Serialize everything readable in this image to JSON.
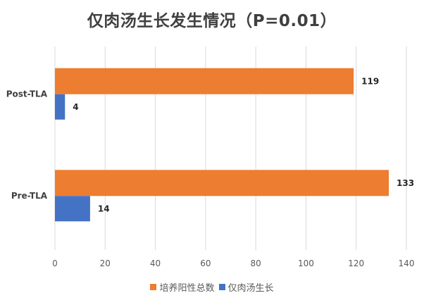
{
  "chart_data": {
    "type": "bar",
    "orientation": "horizontal",
    "title": "仅肉汤生长发生情况（P=0.01）",
    "categories": [
      "Post-TLA",
      "Pre-TLA"
    ],
    "series": [
      {
        "name": "培养阳性总数",
        "color": "#ED7D31",
        "values": [
          119,
          133
        ]
      },
      {
        "name": "仅肉汤生长",
        "color": "#4472C4",
        "values": [
          4,
          14
        ]
      }
    ],
    "xlim": [
      0,
      140
    ],
    "xticks": [
      0,
      20,
      40,
      60,
      80,
      100,
      120,
      140
    ],
    "grid": true,
    "legend_position": "bottom",
    "data_labels": true
  }
}
